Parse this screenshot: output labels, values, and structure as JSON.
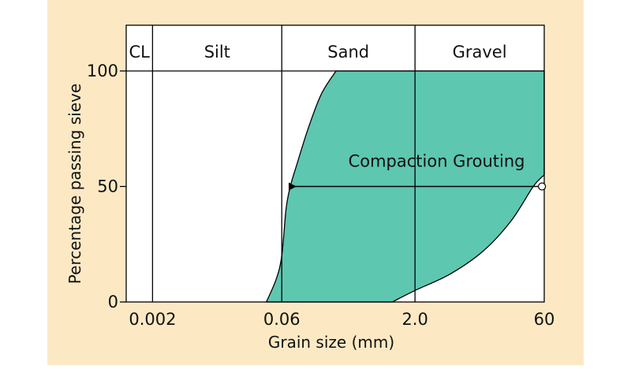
{
  "colors": {
    "background": "#FCE9C4",
    "plot_background": "#FFFFFF",
    "fill": "#5EC7B0",
    "line": "#000000"
  },
  "chart_data": {
    "type": "area",
    "title": "",
    "xlabel": "Grain size (mm)",
    "ylabel": "Percentage passing sieve",
    "x_scale": "log",
    "xlim": [
      0.001,
      60
    ],
    "ylim": [
      0,
      100
    ],
    "x_ticks": [
      0.002,
      0.06,
      2.0,
      60
    ],
    "x_tick_labels": [
      "0.002",
      "0.06",
      "2.0",
      "60"
    ],
    "y_ticks": [
      0,
      50,
      100
    ],
    "y_tick_labels": [
      "0",
      "50",
      "100"
    ],
    "grid": false,
    "soil_bands": [
      {
        "label": "CL",
        "from": 0.001,
        "to": 0.002
      },
      {
        "label": "Silt",
        "from": 0.002,
        "to": 0.06
      },
      {
        "label": "Sand",
        "from": 0.06,
        "to": 2.0
      },
      {
        "label": "Gravel",
        "from": 2.0,
        "to": 60
      }
    ],
    "series": [
      {
        "role": "fine-limit",
        "x": [
          0.04,
          0.052,
          0.06,
          0.067,
          0.075,
          0.09,
          0.12,
          0.17,
          0.25
        ],
        "y": [
          0,
          10,
          20,
          40,
          50,
          60,
          75,
          90,
          100
        ]
      },
      {
        "role": "coarse-limit",
        "x": [
          1.1,
          2.0,
          5.0,
          12.0,
          25.0,
          45.0,
          60.0
        ],
        "y": [
          0,
          5,
          12,
          22,
          35,
          50,
          55
        ]
      }
    ],
    "annotations": [
      {
        "text": "Compaction Grouting",
        "arrow_from": {
          "x": 52,
          "y": 50
        },
        "arrow_to": {
          "x": 0.069,
          "y": 50
        }
      }
    ]
  }
}
